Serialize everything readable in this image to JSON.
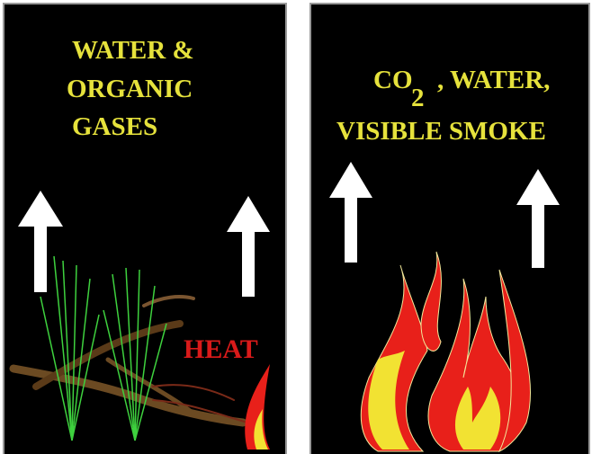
{
  "left_panel": {
    "label_lines": [
      "WATER &",
      "ORGANIC",
      "GASES"
    ],
    "heat": "HEAT"
  },
  "right_panel": {
    "co": "CO",
    "subscript": "2",
    "rest": ", WATER,",
    "line2": "VISIBLE SMOKE"
  }
}
